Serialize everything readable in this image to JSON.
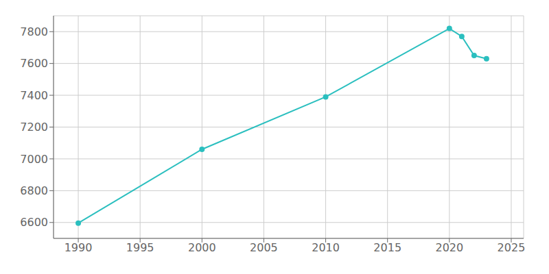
{
  "chart_data": {
    "type": "line",
    "x": [
      1990,
      2000,
      2010,
      2020,
      2021,
      2022,
      2023
    ],
    "values": [
      6596,
      7060,
      7390,
      7820,
      7770,
      7650,
      7630
    ],
    "color": "#2bbfbf",
    "marker": "o",
    "xlim": [
      1988,
      2026
    ],
    "ylim": [
      6500,
      7900
    ],
    "xticks": [
      1990,
      1995,
      2000,
      2005,
      2010,
      2015,
      2020,
      2025
    ],
    "yticks": [
      6600,
      6800,
      7000,
      7200,
      7400,
      7600,
      7800
    ],
    "grid": true
  }
}
